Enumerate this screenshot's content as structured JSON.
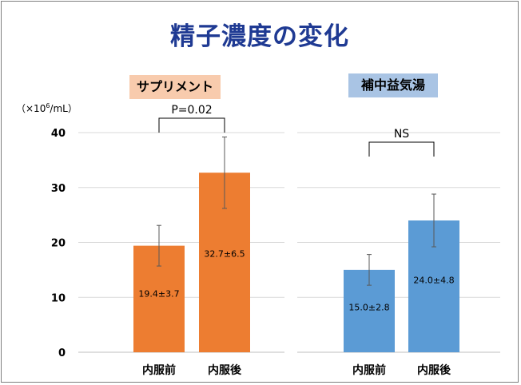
{
  "title": "精子濃度の変化",
  "unit_label": "（×10",
  "unit_exp": "6",
  "unit_suffix": "/mL）",
  "colors": {
    "supplement": "#ed7d31",
    "herbal": "#5b9bd5",
    "title": "#1f3a93"
  },
  "chart_data": [
    {
      "type": "bar",
      "group_label": "サプリメント",
      "categories": [
        "内服前",
        "内服後"
      ],
      "values": [
        19.4,
        32.7
      ],
      "sd": [
        3.7,
        6.5
      ],
      "value_labels": [
        "19.4±3.7",
        "32.7±6.5"
      ],
      "significance": "P=0.02",
      "ylim": [
        0,
        40
      ],
      "yticks": [
        "0",
        "10",
        "20",
        "30",
        "40"
      ],
      "color": "#ed7d31",
      "grid": true
    },
    {
      "type": "bar",
      "group_label": "補中益気湯",
      "categories": [
        "内服前",
        "内服後"
      ],
      "values": [
        15.0,
        24.0
      ],
      "sd": [
        2.8,
        4.8
      ],
      "value_labels": [
        "15.0±2.8",
        "24.0±4.8"
      ],
      "significance": "NS",
      "ylim": [
        0,
        40
      ],
      "color": "#5b9bd5",
      "grid": true
    }
  ]
}
